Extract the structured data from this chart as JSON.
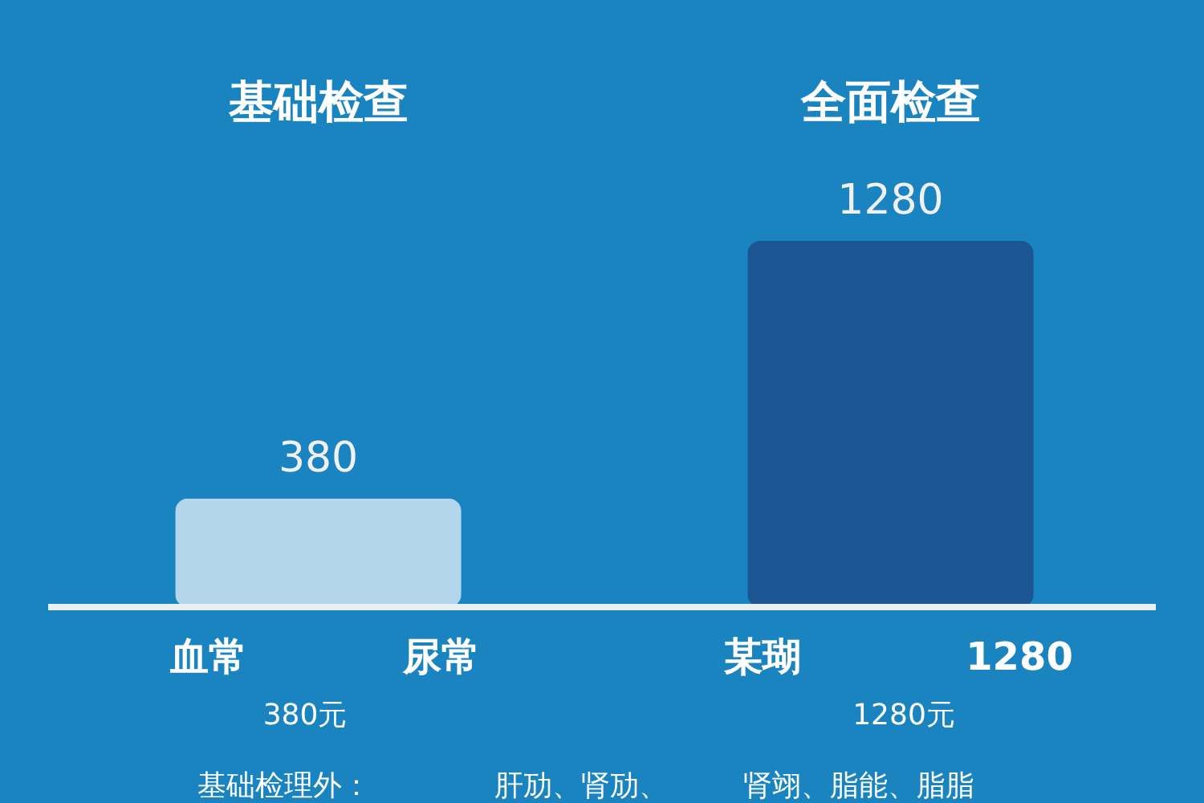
{
  "chart_data": {
    "type": "bar",
    "data_labels": true,
    "categories": [
      "基础检查",
      "全面检查"
    ],
    "values": [
      380,
      1280
    ],
    "colors": [
      "#b3d6ec",
      "#1b5592"
    ],
    "annotations": [
      "血常",
      "尿常",
      "某瑚",
      "1280",
      "380元",
      "1280元",
      "基础检理外：",
      "肝劢、肾劢、",
      "肾翊、脂能、脂脂"
    ]
  }
}
